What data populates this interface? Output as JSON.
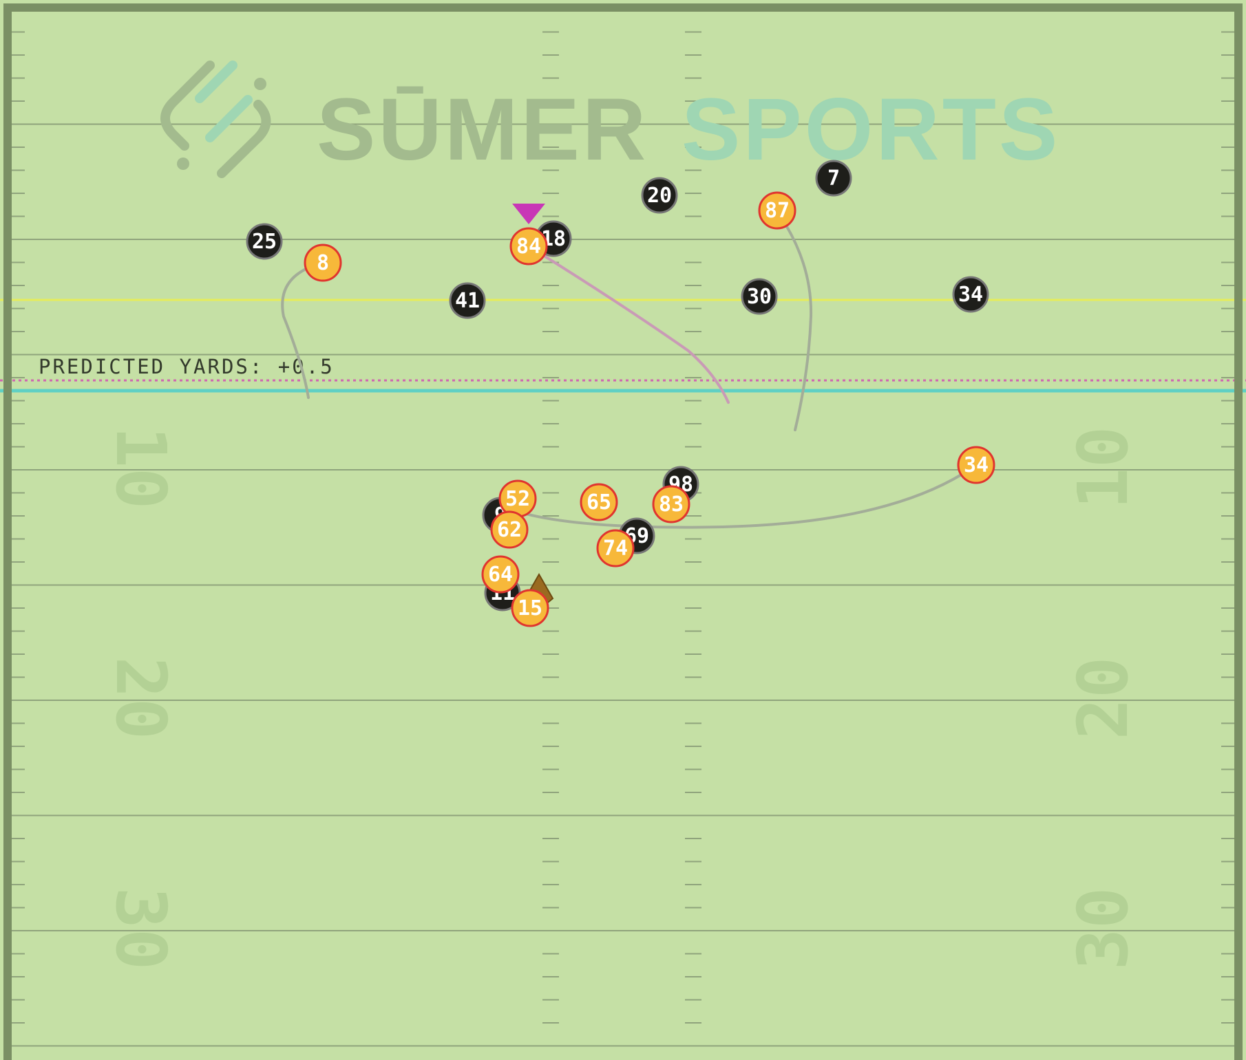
{
  "watermark": {
    "word1": "SŪMER",
    "word2": "SPORTS"
  },
  "prediction": {
    "label": "PREDICTED YARDS: +0.5"
  },
  "yard_numbers": [
    {
      "left": "10",
      "right": "10"
    },
    {
      "left": "20",
      "right": "20"
    },
    {
      "left": "30",
      "right": "30"
    }
  ],
  "colors": {
    "field": "#c5e0a5",
    "border": "#7a8f64",
    "yard_line": "#8fa37c",
    "line_of_scrimmage": "#e6ec5a",
    "first_down": "#5ed0c4",
    "predicted_line": "#cf66b0",
    "defense_fill": "#1e1e1a",
    "offense_fill": "#f7b83a",
    "offense_stroke": "#e0342f",
    "ball_carrier_marker": "#c837b6",
    "ball": "#9a6a20",
    "route": "#a3ad98",
    "highlight_route": "#c99ab6"
  },
  "players": {
    "defense": [
      "25",
      "41",
      "18",
      "20",
      "7",
      "30",
      "34",
      "98",
      "9",
      "69",
      "11"
    ],
    "offense": [
      "8",
      "84",
      "87",
      "34",
      "52",
      "65",
      "83",
      "62",
      "74",
      "64",
      "15"
    ]
  }
}
